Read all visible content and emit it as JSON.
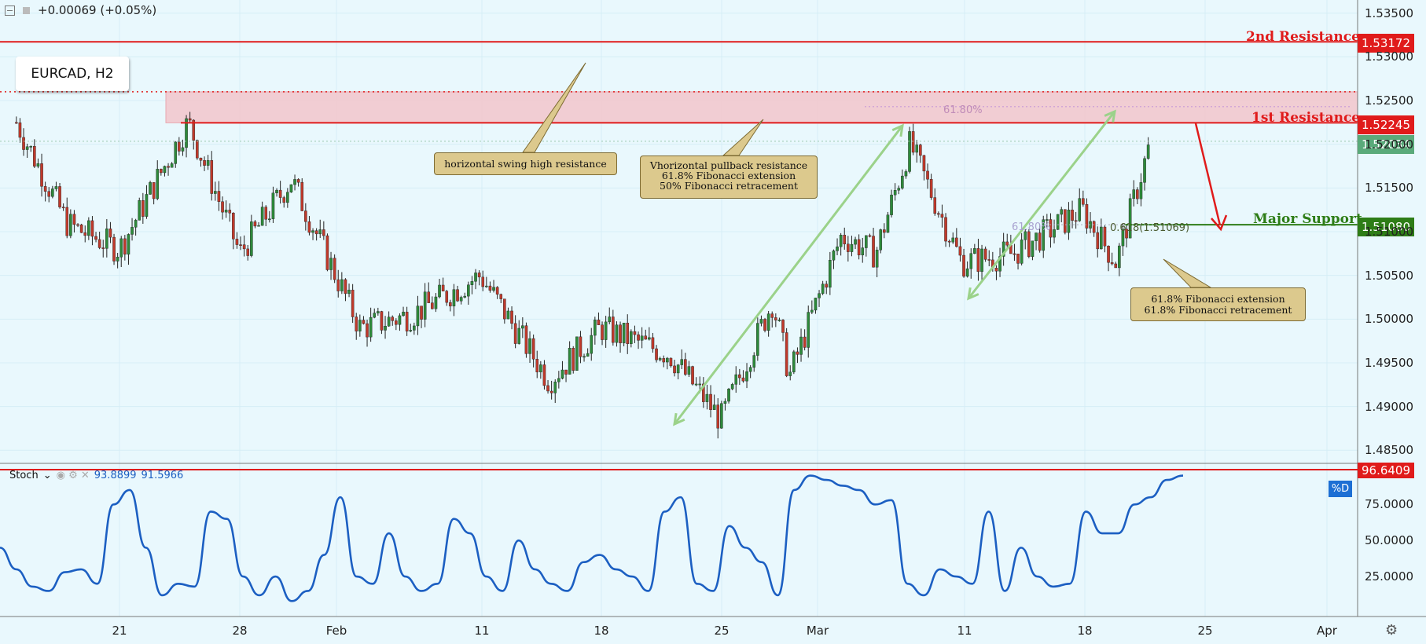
{
  "header": {
    "change": "+0.00069 (+0.05%)"
  },
  "symbol": {
    "label": "EURCAD,  H2"
  },
  "levels": {
    "second_resistance": {
      "label": "2nd Resistance",
      "price": "1.53172",
      "color": "#e01b1b"
    },
    "first_resistance": {
      "label": "1st Resistance",
      "price": "1.52245",
      "color": "#e01b1b"
    },
    "major_support": {
      "label": "Major Support",
      "price": "1.51080",
      "color": "#2e7d17"
    },
    "current": {
      "price": "1.52034",
      "color": "#5aaa7a"
    }
  },
  "annotations": {
    "note1": "horizontal swing high resistance",
    "note2": "Vhorizontal pullback resistance\n61.8% Fibonacci extension\n50% Fibonacci retracement",
    "note3": "61.8% Fibonacci extension\n61.8% Fibonacci retracement",
    "fib1": "61.80%",
    "fib2": "61.80%",
    "fib3": "0.618(1.51069)"
  },
  "stoch": {
    "name": "Stoch",
    "k": "93.8899",
    "d": "91.5966",
    "level": "96.6409",
    "badge": "%D"
  },
  "chart_data": [
    {
      "type": "candlestick",
      "title": "EURCAD, H2",
      "y_ticks": [
        "1.53500",
        "1.53000",
        "1.52500",
        "1.52000",
        "1.51500",
        "1.51000",
        "1.50500",
        "1.50000",
        "1.49500",
        "1.49000",
        "1.48500"
      ],
      "x_ticks": [
        "21",
        "28",
        "Feb",
        "11",
        "18",
        "25",
        "Mar",
        "11",
        "18",
        "25",
        "Apr"
      ],
      "ylim": [
        1.4835,
        1.5365
      ],
      "approx_close_path": {
        "x": [
          "Jan 15",
          "Jan 18",
          "Jan 21",
          "Jan 25",
          "Jan 28",
          "Jan 31",
          "Feb 4",
          "Feb 7",
          "Feb 11",
          "Feb 15",
          "Feb 18",
          "Feb 22",
          "Feb 25",
          "Feb 28",
          "Mar 1",
          "Mar 4",
          "Mar 6",
          "Mar 8",
          "Mar 11",
          "Mar 14",
          "Mar 18",
          "Mar 20",
          "Mar 22"
        ],
        "y": [
          1.5225,
          1.5108,
          1.508,
          1.5225,
          1.5075,
          1.516,
          1.499,
          1.5005,
          1.505,
          1.493,
          1.499,
          1.496,
          1.4885,
          1.502,
          1.4935,
          1.5095,
          1.5075,
          1.52,
          1.5065,
          1.5075,
          1.5125,
          1.5065,
          1.5203
        ]
      },
      "horizontal_levels": [
        1.53172,
        1.52245,
        1.52034,
        1.5108
      ],
      "resistance_zone": [
        1.52245,
        1.526
      ]
    },
    {
      "type": "line",
      "title": "Stoch",
      "series": [
        {
          "name": "%D",
          "values": [
            45,
            30,
            18,
            15,
            28,
            30,
            20,
            75,
            85,
            45,
            12,
            20,
            18,
            70,
            65,
            25,
            12,
            25,
            8,
            15,
            40,
            80,
            25,
            20,
            55,
            25,
            15,
            20,
            65,
            55,
            25,
            15,
            50,
            30,
            20,
            15,
            35,
            40,
            30,
            25,
            15,
            70,
            80,
            20,
            15,
            60,
            45,
            35,
            12,
            85,
            95,
            92,
            88,
            85,
            75,
            78,
            20,
            12,
            30,
            25,
            20,
            70,
            15,
            45,
            25,
            18,
            20,
            70,
            55,
            55,
            75,
            80,
            92,
            95
          ]
        }
      ],
      "y_ticks": [
        "75.0000",
        "50.0000",
        "25.0000"
      ],
      "ylim": [
        0,
        100
      ]
    }
  ]
}
